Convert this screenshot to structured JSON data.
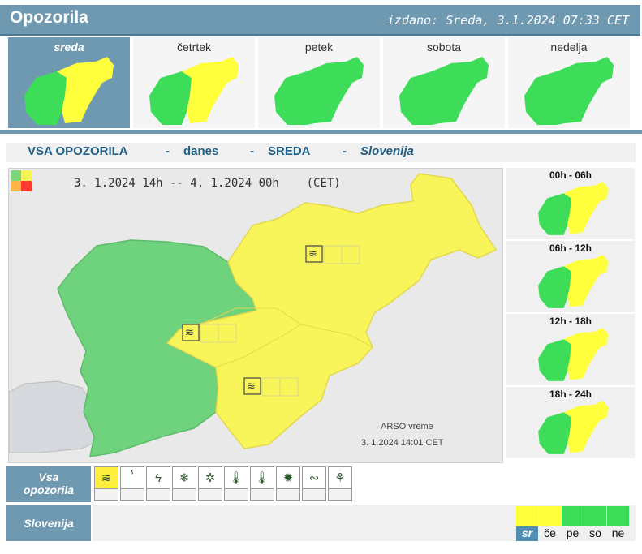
{
  "header": {
    "title": "Opozorila",
    "issued": "izdano: Sreda, 3.1.2024 07:33 CET"
  },
  "colors": {
    "accent": "#6f98b1",
    "green": "#3ddd5a",
    "yellow": "#ffff3c",
    "map_green": "#6fd27d",
    "map_yellow": "#f7f55a",
    "orange": "#ffb347",
    "red": "#ff3b30"
  },
  "days": [
    {
      "label": "sreda",
      "selected": true,
      "status": "yellow"
    },
    {
      "label": "četrtek",
      "selected": false,
      "status": "yellow"
    },
    {
      "label": "petek",
      "selected": false,
      "status": "green"
    },
    {
      "label": "sobota",
      "selected": false,
      "status": "green"
    },
    {
      "label": "nedelja",
      "selected": false,
      "status": "green"
    }
  ],
  "title_bar": {
    "all_warnings": "VSA OPOZORILA",
    "dash": "-",
    "today": "danes",
    "day": "SREDA",
    "region": "Slovenija"
  },
  "map": {
    "period": "3. 1.2024  14h  --  4. 1.2024  00h",
    "timezone": "(CET)",
    "source": "ARSO vreme",
    "source_date": "3. 1.2024  14:01 CET",
    "wind_icon": "wind-icon"
  },
  "intervals": [
    {
      "label": "00h - 06h"
    },
    {
      "label": "06h - 12h"
    },
    {
      "label": "12h - 18h"
    },
    {
      "label": "18h - 24h"
    }
  ],
  "bottom": {
    "all_warnings_label_1": "Vsa",
    "all_warnings_label_2": "opozorila",
    "region_label": "Slovenija",
    "types": [
      {
        "icon": "wind-icon",
        "active": true
      },
      {
        "icon": "rain-icon",
        "active": false
      },
      {
        "icon": "thunderstorm-icon",
        "active": false
      },
      {
        "icon": "snow-icon",
        "active": false
      },
      {
        "icon": "snow-ice-icon",
        "active": false
      },
      {
        "icon": "high-temperature-icon",
        "active": false
      },
      {
        "icon": "low-temperature-icon",
        "active": false
      },
      {
        "icon": "fire-icon",
        "active": false
      },
      {
        "icon": "coastal-wave-icon",
        "active": false
      },
      {
        "icon": "flood-icon",
        "active": false
      }
    ],
    "day_statuses": [
      {
        "label": "sr",
        "color": "yellow",
        "selected": true
      },
      {
        "label": "če",
        "color": "yellow",
        "selected": false
      },
      {
        "label": "pe",
        "color": "green",
        "selected": false
      },
      {
        "label": "so",
        "color": "green",
        "selected": false
      },
      {
        "label": "ne",
        "color": "green",
        "selected": false
      }
    ]
  }
}
